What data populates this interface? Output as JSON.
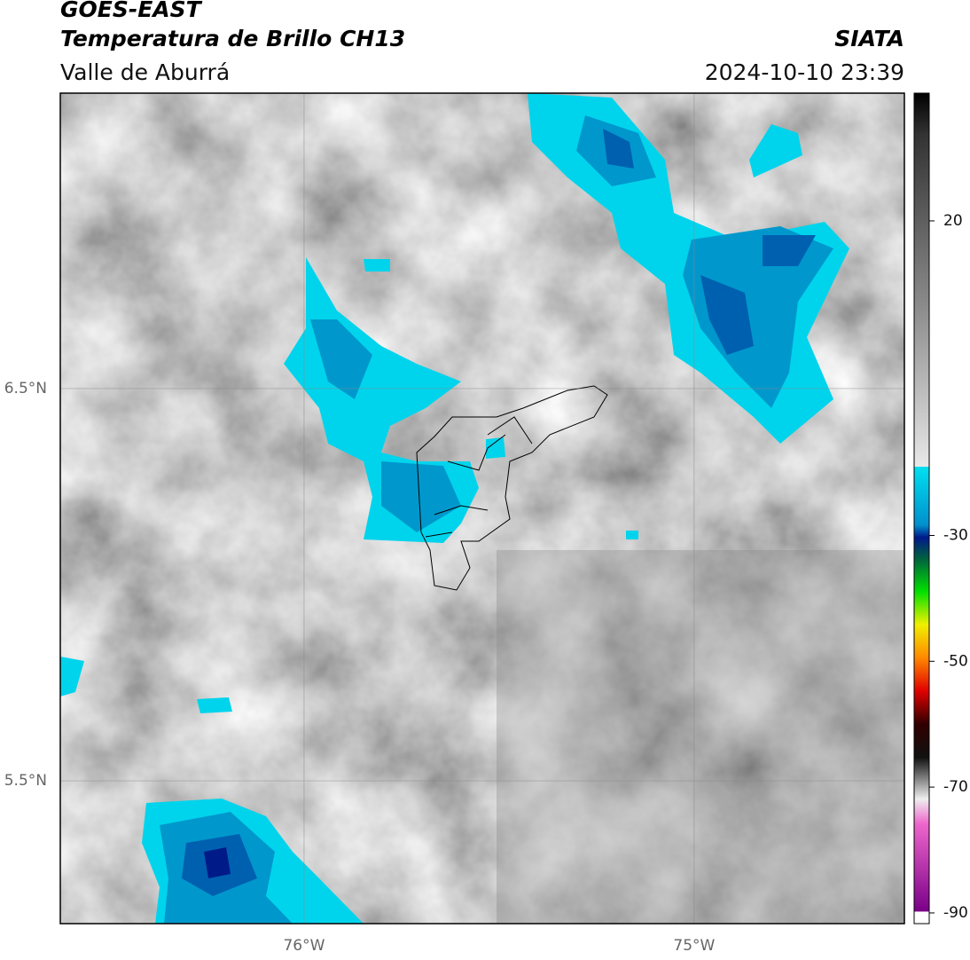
{
  "header": {
    "title": "GOES-EAST",
    "subtitle": "Temperatura de Brillo CH13",
    "region": "Valle de Aburrá",
    "source": "SIATA",
    "datetime": "2024-10-10 23:39"
  },
  "map": {
    "xlim": [
      -76.625,
      -74.461
    ],
    "ylim": [
      5.136,
      7.253
    ],
    "xticks": [
      {
        "value": -76,
        "label": "76°W"
      },
      {
        "value": -75,
        "label": "75°W"
      }
    ],
    "yticks": [
      {
        "value": 6.5,
        "label": "6.5°N"
      },
      {
        "value": 5.5,
        "label": "5.5°N"
      }
    ]
  },
  "colorbar": {
    "clim": [
      -91.7,
      40.3
    ],
    "ticks": [
      20,
      -30,
      -50,
      -70,
      -90
    ]
  }
}
